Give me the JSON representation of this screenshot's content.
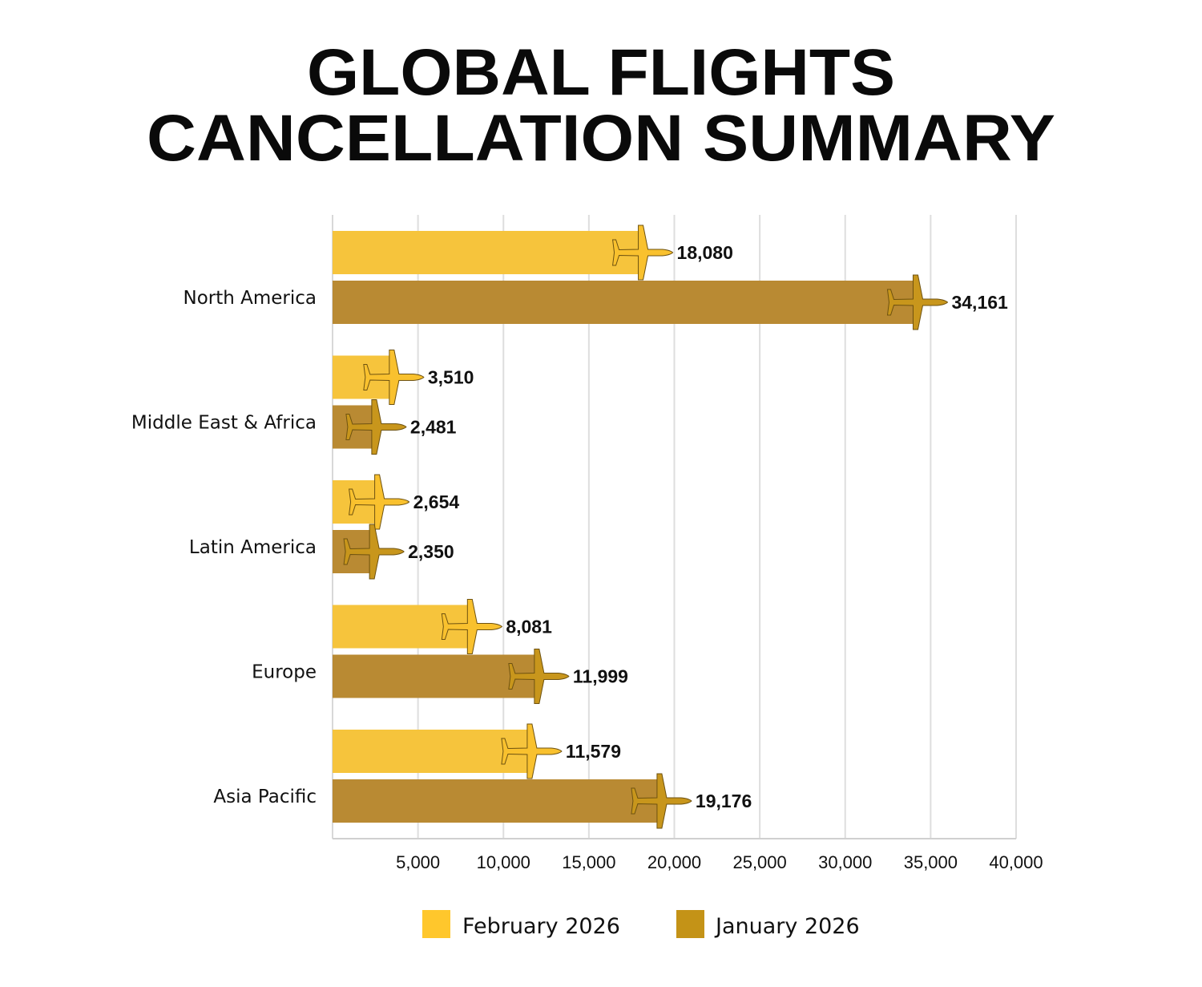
{
  "chart_data": {
    "type": "bar",
    "orientation": "horizontal",
    "title_lines": [
      "GLOBAL FLIGHTS",
      "CANCELLATION SUMMARY"
    ],
    "categories": [
      "North America",
      "Middle East & Africa",
      "Latin America",
      "Europe",
      "Asia Pacific"
    ],
    "series": [
      {
        "name": "February 2026",
        "values": [
          18080,
          3510,
          2654,
          8081,
          11579
        ],
        "labels": [
          "18,080",
          "3,510",
          "2,654",
          "8,081",
          "11,579"
        ],
        "bar_color": "#F6C43C",
        "icon_color": "#F9C12E",
        "legend_color": "#FFC72C"
      },
      {
        "name": "January 2026",
        "values": [
          34161,
          2481,
          2350,
          11999,
          19176
        ],
        "labels": [
          "34,161",
          "2,481",
          "2,350",
          "11,999",
          "19,176"
        ],
        "bar_color": "#B98A33",
        "icon_color": "#C8961C",
        "legend_color": "#C49317"
      }
    ],
    "xlim": [
      0,
      40000
    ],
    "xticks": [
      5000,
      10000,
      15000,
      20000,
      25000,
      30000,
      35000,
      40000
    ],
    "xtick_labels": [
      "5,000",
      "10,000",
      "15,000",
      "20,000",
      "25,000",
      "30,000",
      "35,000",
      "40,000"
    ],
    "grid": true,
    "legend_position": "bottom-center",
    "marker_icon": "airplane-icon"
  }
}
